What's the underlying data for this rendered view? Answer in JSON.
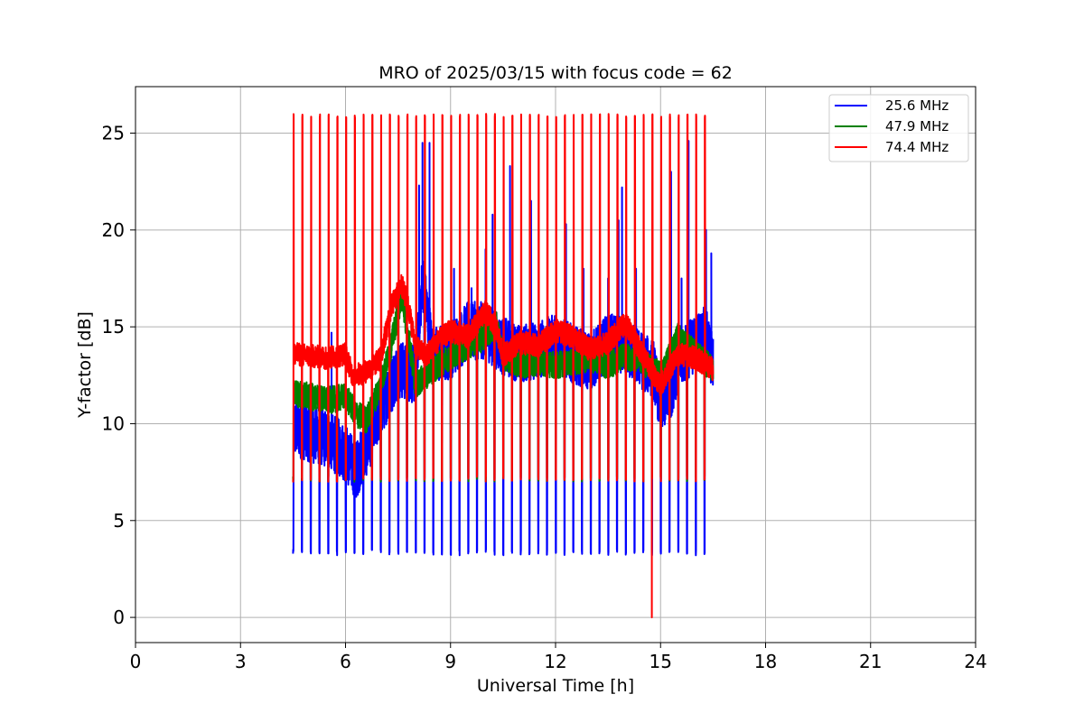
{
  "chart_data": {
    "type": "line",
    "title": "MRO of 2025/03/15 with focus code = 62",
    "xlabel": "Universal Time [h]",
    "ylabel": "Y-factor [dB]",
    "xlim": [
      0,
      24
    ],
    "ylim": [
      -1.3,
      27.4
    ],
    "xticks": [
      0,
      3,
      6,
      9,
      12,
      15,
      18,
      21,
      24
    ],
    "yticks": [
      0,
      5,
      10,
      15,
      20,
      25
    ],
    "grid": true,
    "legend_position": "top-right",
    "series": [
      {
        "name": "25.6 MHz",
        "color": "#0000ff",
        "data_span": [
          4.5,
          16.5
        ],
        "baseline": [
          [
            4.5,
            9.8
          ],
          [
            5.0,
            9.5
          ],
          [
            5.5,
            9.2
          ],
          [
            6.0,
            8.5
          ],
          [
            6.3,
            7.6
          ],
          [
            6.7,
            9.2
          ],
          [
            7.0,
            10.8
          ],
          [
            7.5,
            12.8
          ],
          [
            8.0,
            12.5
          ],
          [
            8.2,
            17.5
          ],
          [
            8.5,
            13.5
          ],
          [
            9.0,
            13.8
          ],
          [
            9.5,
            14.8
          ],
          [
            10.0,
            14.8
          ],
          [
            10.5,
            14.0
          ],
          [
            11.0,
            13.6
          ],
          [
            11.5,
            13.8
          ],
          [
            12.0,
            14.2
          ],
          [
            12.5,
            13.6
          ],
          [
            13.0,
            13.2
          ],
          [
            13.5,
            14.2
          ],
          [
            14.0,
            14.0
          ],
          [
            14.5,
            13.2
          ],
          [
            14.8,
            12.8
          ],
          [
            15.0,
            11.0
          ],
          [
            15.3,
            11.8
          ],
          [
            15.5,
            13.2
          ],
          [
            16.0,
            14.2
          ],
          [
            16.3,
            14.6
          ],
          [
            16.5,
            13.0
          ]
        ],
        "dips": [
          {
            "start": 4.5,
            "end": 16.3,
            "period": 0.25,
            "value": 3.2
          }
        ],
        "spikes": [
          [
            5.6,
            14.7
          ],
          [
            8.1,
            22.3
          ],
          [
            8.2,
            24.5
          ],
          [
            8.4,
            24.5
          ],
          [
            9.1,
            18.0
          ],
          [
            9.6,
            17.0
          ],
          [
            10.0,
            19.0
          ],
          [
            10.2,
            20.8
          ],
          [
            10.7,
            23.3
          ],
          [
            11.3,
            21.5
          ],
          [
            12.3,
            20.3
          ],
          [
            12.8,
            18.0
          ],
          [
            13.5,
            17.5
          ],
          [
            13.8,
            20.5
          ],
          [
            13.9,
            22.2
          ],
          [
            14.3,
            18.0
          ],
          [
            15.3,
            23.0
          ],
          [
            15.6,
            17.5
          ],
          [
            15.8,
            24.6
          ],
          [
            16.3,
            20.0
          ],
          [
            16.45,
            18.8
          ]
        ]
      },
      {
        "name": "47.9 MHz",
        "color": "#008000",
        "data_span": [
          4.5,
          16.5
        ],
        "baseline": [
          [
            4.5,
            11.6
          ],
          [
            5.0,
            11.4
          ],
          [
            5.5,
            11.2
          ],
          [
            6.0,
            11.4
          ],
          [
            6.3,
            10.5
          ],
          [
            6.6,
            10.2
          ],
          [
            7.0,
            12.0
          ],
          [
            7.3,
            14.0
          ],
          [
            7.6,
            16.6
          ],
          [
            7.8,
            14.5
          ],
          [
            8.0,
            12.0
          ],
          [
            8.5,
            12.8
          ],
          [
            9.0,
            13.5
          ],
          [
            9.5,
            14.0
          ],
          [
            10.0,
            14.5
          ],
          [
            10.3,
            15.2
          ],
          [
            10.5,
            13.5
          ],
          [
            11.0,
            13.0
          ],
          [
            11.5,
            13.2
          ],
          [
            12.0,
            13.0
          ],
          [
            12.5,
            13.2
          ],
          [
            13.0,
            13.4
          ],
          [
            13.5,
            13.0
          ],
          [
            14.0,
            13.5
          ],
          [
            14.5,
            13.2
          ],
          [
            15.0,
            12.5
          ],
          [
            15.5,
            14.5
          ],
          [
            16.0,
            13.6
          ],
          [
            16.5,
            12.8
          ]
        ],
        "dips": [
          {
            "start": 4.5,
            "end": 16.3,
            "period": 0.25,
            "value": 7.0
          }
        ],
        "spikes": []
      },
      {
        "name": "74.4 MHz",
        "color": "#ff0000",
        "data_span": [
          4.5,
          16.5
        ],
        "baseline": [
          [
            4.5,
            13.6
          ],
          [
            5.0,
            13.5
          ],
          [
            5.5,
            13.4
          ],
          [
            6.0,
            13.6
          ],
          [
            6.2,
            12.5
          ],
          [
            6.5,
            12.6
          ],
          [
            6.8,
            13.0
          ],
          [
            7.0,
            13.4
          ],
          [
            7.3,
            16.0
          ],
          [
            7.6,
            17.2
          ],
          [
            7.8,
            16.0
          ],
          [
            8.0,
            14.0
          ],
          [
            8.3,
            13.5
          ],
          [
            8.6,
            14.2
          ],
          [
            9.0,
            14.8
          ],
          [
            9.5,
            14.5
          ],
          [
            10.0,
            15.8
          ],
          [
            10.3,
            15.0
          ],
          [
            10.5,
            13.5
          ],
          [
            11.0,
            14.2
          ],
          [
            11.5,
            14.0
          ],
          [
            12.0,
            14.8
          ],
          [
            12.5,
            14.5
          ],
          [
            13.0,
            13.8
          ],
          [
            13.5,
            14.2
          ],
          [
            14.0,
            15.2
          ],
          [
            14.5,
            13.5
          ],
          [
            15.0,
            12.0
          ],
          [
            15.5,
            13.6
          ],
          [
            16.0,
            13.4
          ],
          [
            16.5,
            12.8
          ]
        ],
        "dips": [
          {
            "start": 4.5,
            "end": 16.3,
            "period": 0.25,
            "value": 7.0
          }
        ],
        "spikes": [
          {
            "start": 4.5,
            "end": 16.3,
            "period": 0.25,
            "value": 26.0
          }
        ],
        "min_point": [
          14.75,
          0.0
        ]
      }
    ]
  }
}
